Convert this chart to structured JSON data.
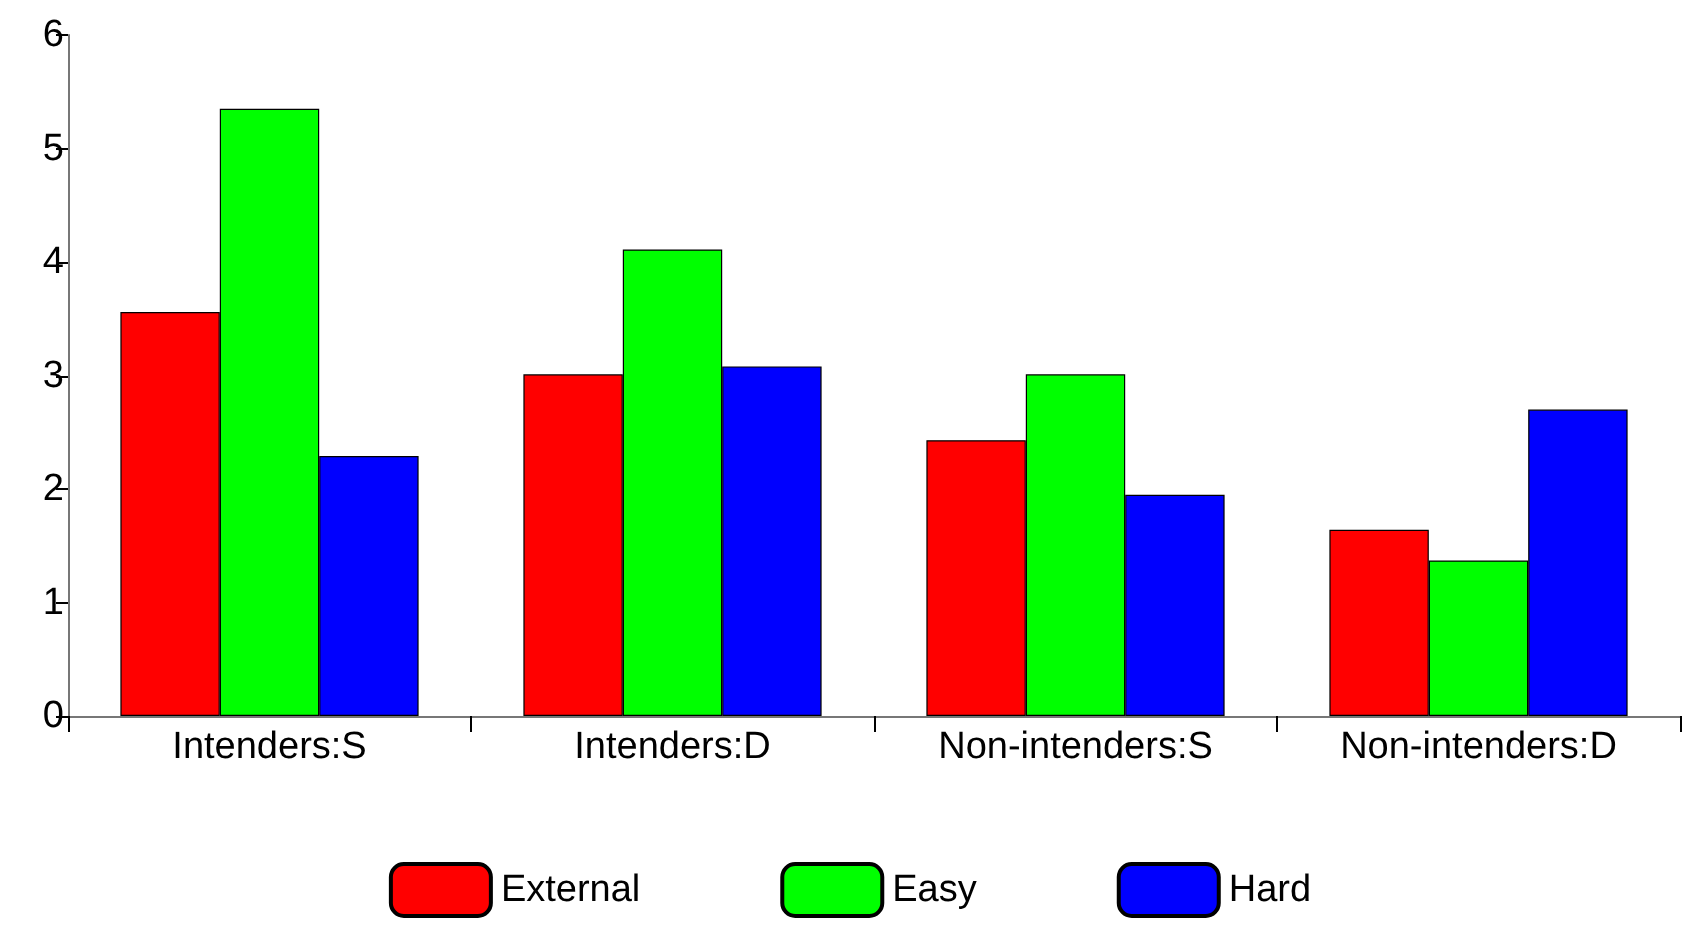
{
  "chart_data": {
    "type": "bar",
    "categories": [
      "Intenders:S",
      "Intenders:D",
      "Non-intenders:S",
      "Non-intenders:D"
    ],
    "series": [
      {
        "name": "External",
        "color": "#ff0000",
        "values": [
          3.56,
          3.01,
          2.43,
          1.64
        ]
      },
      {
        "name": "Easy",
        "color": "#00ff00",
        "values": [
          5.35,
          4.11,
          3.01,
          1.37
        ]
      },
      {
        "name": "Hard",
        "color": "#0000ff",
        "values": [
          2.29,
          3.08,
          1.95,
          2.7
        ]
      }
    ],
    "ylim": [
      0,
      6
    ],
    "yticks": [
      0,
      1,
      2,
      3,
      4,
      5,
      6
    ],
    "grid": false,
    "legend": "bottom"
  }
}
